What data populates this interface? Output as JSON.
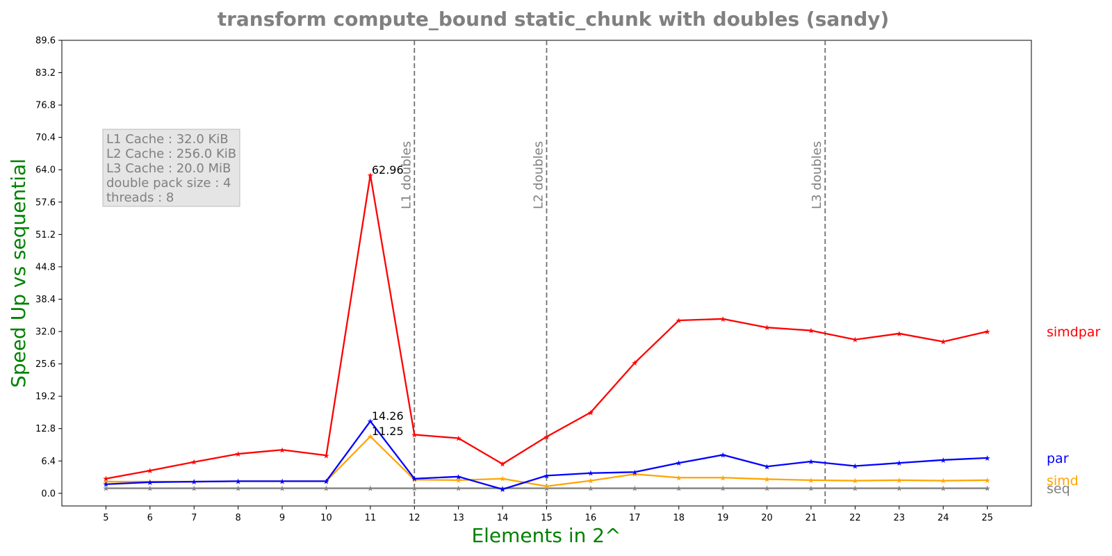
{
  "chart_data": {
    "type": "line",
    "title": "transform compute_bound static_chunk with doubles  (sandy)",
    "xlabel": "Elements in 2^",
    "ylabel": "Speed Up vs sequential",
    "label_color": "#008000",
    "x": [
      5,
      6,
      7,
      8,
      9,
      10,
      11,
      12,
      13,
      14,
      15,
      16,
      17,
      18,
      19,
      20,
      21,
      22,
      23,
      24,
      25
    ],
    "xlim": [
      4,
      26
    ],
    "ylim": [
      -2.5,
      89.6
    ],
    "yticks": [
      0.0,
      6.4,
      12.8,
      19.2,
      25.6,
      32.0,
      38.4,
      44.8,
      51.2,
      57.6,
      64.0,
      70.4,
      76.8,
      83.2,
      89.6
    ],
    "ytick_labels": [
      "0.0",
      "6.4",
      "12.8",
      "19.2",
      "25.6",
      "32.0",
      "38.4",
      "44.8",
      "51.2",
      "57.6",
      "64.0",
      "70.4",
      "76.8",
      "83.2",
      "89.6"
    ],
    "series": [
      {
        "name": "seq",
        "color": "#808080",
        "values": [
          1,
          1,
          1,
          1,
          1,
          1,
          1,
          1,
          1,
          1,
          1,
          1,
          1,
          1,
          1,
          1,
          1,
          1,
          1,
          1,
          1
        ]
      },
      {
        "name": "simd",
        "color": "#ffa500",
        "values": [
          2.3,
          2.3,
          2.3,
          2.4,
          2.4,
          2.4,
          11.25,
          2.7,
          2.6,
          2.9,
          1.4,
          2.5,
          3.8,
          3.1,
          3.1,
          2.8,
          2.6,
          2.5,
          2.6,
          2.5,
          2.6
        ]
      },
      {
        "name": "par",
        "color": "#0000ff",
        "values": [
          1.8,
          2.2,
          2.3,
          2.4,
          2.4,
          2.4,
          14.26,
          2.9,
          3.3,
          0.8,
          3.5,
          4.0,
          4.2,
          6.0,
          7.6,
          5.3,
          6.3,
          5.4,
          6.0,
          6.6,
          7.0
        ]
      },
      {
        "name": "simdpar",
        "color": "#ff0000",
        "values": [
          2.9,
          4.5,
          6.2,
          7.8,
          8.6,
          7.5,
          62.96,
          11.6,
          10.9,
          5.8,
          11.2,
          16.0,
          25.8,
          34.2,
          34.5,
          32.8,
          32.2,
          30.4,
          31.6,
          30.0,
          32.0
        ]
      }
    ],
    "annotations": [
      {
        "x": 11,
        "y": 62.96,
        "text": "62.96"
      },
      {
        "x": 11,
        "y": 14.26,
        "text": "14.26"
      },
      {
        "x": 11,
        "y": 11.25,
        "text": "11.25"
      }
    ],
    "cache_lines": [
      {
        "x": 12,
        "label": "L1 doubles"
      },
      {
        "x": 15,
        "label": "L2 doubles"
      },
      {
        "x": 21.32,
        "label": "L3 doubles"
      }
    ],
    "info_box": [
      "L1 Cache : 32.0 KiB",
      "L2 Cache : 256.0 KiB",
      "L3 Cache : 20.0 MiB",
      "double pack size : 4",
      "threads : 8"
    ],
    "grid": false
  }
}
